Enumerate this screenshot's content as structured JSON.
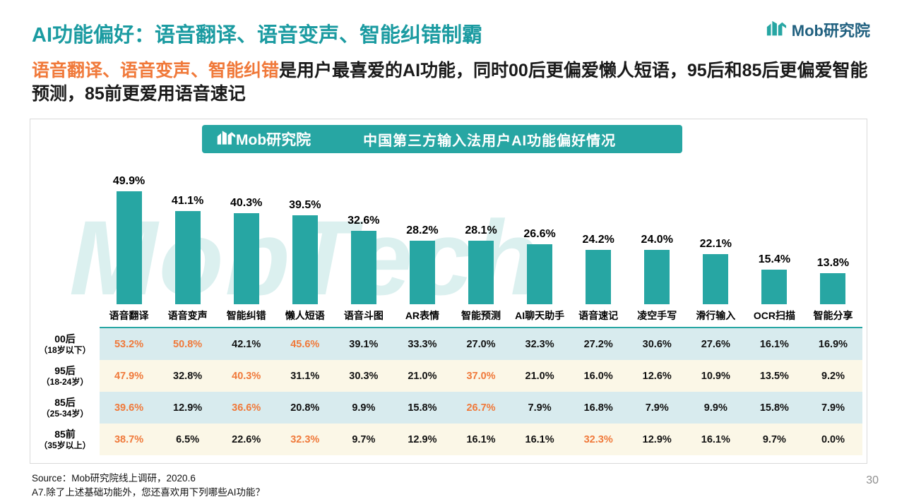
{
  "slide": {
    "title": "AI功能偏好：语音翻译、语音变声、智能纠错制霸",
    "subtitle_highlight": "语音翻译、语音变声、智能纠错",
    "subtitle_rest": "是用户最喜爱的AI功能，同时00后更偏爱懒人短语，95后和85后更偏爱智能预测，85前更爱用语音速记",
    "page_number": "30"
  },
  "brand": {
    "name": "Mob研究院"
  },
  "banner": {
    "brand": "Mob研究院",
    "title": "中国第三方输入法用户AI功能偏好情况"
  },
  "watermark": {
    "text": "MobTech"
  },
  "chart_data": {
    "type": "bar",
    "title": "中国第三方输入法用户AI功能偏好情况",
    "unit": "%",
    "categories": [
      "语音翻译",
      "语音变声",
      "智能纠错",
      "懒人短语",
      "语音斗图",
      "AR表情",
      "智能预测",
      "AI聊天助手",
      "语音速记",
      "凌空手写",
      "滑行输入",
      "OCR扫描",
      "智能分享"
    ],
    "values": [
      49.9,
      41.1,
      40.3,
      39.5,
      32.6,
      28.2,
      28.1,
      26.6,
      24.2,
      24.0,
      22.1,
      15.4,
      13.8
    ],
    "value_labels": [
      "49.9%",
      "41.1%",
      "40.3%",
      "39.5%",
      "32.6%",
      "28.2%",
      "28.1%",
      "26.6%",
      "24.2%",
      "24.0%",
      "22.1%",
      "15.4%",
      "13.8%"
    ],
    "ylim": [
      0,
      55
    ],
    "legend": "none",
    "grid": false,
    "table": {
      "rows": [
        {
          "group": "00后",
          "range": "（18岁以下）",
          "values": [
            "53.2%",
            "50.8%",
            "42.1%",
            "45.6%",
            "39.1%",
            "33.3%",
            "27.0%",
            "32.3%",
            "27.2%",
            "30.6%",
            "27.6%",
            "16.1%",
            "16.9%"
          ],
          "highlighted_columns": [
            0,
            1,
            3
          ]
        },
        {
          "group": "95后",
          "range": "（18-24岁）",
          "values": [
            "47.9%",
            "32.8%",
            "40.3%",
            "31.1%",
            "30.3%",
            "21.0%",
            "37.0%",
            "21.0%",
            "16.0%",
            "12.6%",
            "10.9%",
            "13.5%",
            "9.2%"
          ],
          "highlighted_columns": [
            0,
            2,
            6
          ]
        },
        {
          "group": "85后",
          "range": "（25-34岁）",
          "values": [
            "39.6%",
            "12.9%",
            "36.6%",
            "20.8%",
            "9.9%",
            "15.8%",
            "26.7%",
            "7.9%",
            "16.8%",
            "7.9%",
            "9.9%",
            "15.8%",
            "7.9%"
          ],
          "highlighted_columns": [
            0,
            2,
            6
          ]
        },
        {
          "group": "85前",
          "range": "（35岁以上）",
          "values": [
            "38.7%",
            "6.5%",
            "22.6%",
            "32.3%",
            "9.7%",
            "12.9%",
            "16.1%",
            "16.1%",
            "32.3%",
            "12.9%",
            "16.1%",
            "9.7%",
            "0.0%"
          ],
          "highlighted_columns": [
            0,
            3,
            8
          ]
        }
      ]
    }
  },
  "footer": {
    "source": "Source：Mob研究院线上调研，2020.6",
    "question": "A7.除了上述基础功能外，您还喜欢用下列哪些AI功能？"
  },
  "colors": {
    "teal": "#27A6A3",
    "orange": "#F0793A",
    "bar": "#27A6A3",
    "row_teal": "#D8EBEE",
    "row_cream": "#FBF7E7",
    "title_teal": "#1B9BA1"
  }
}
